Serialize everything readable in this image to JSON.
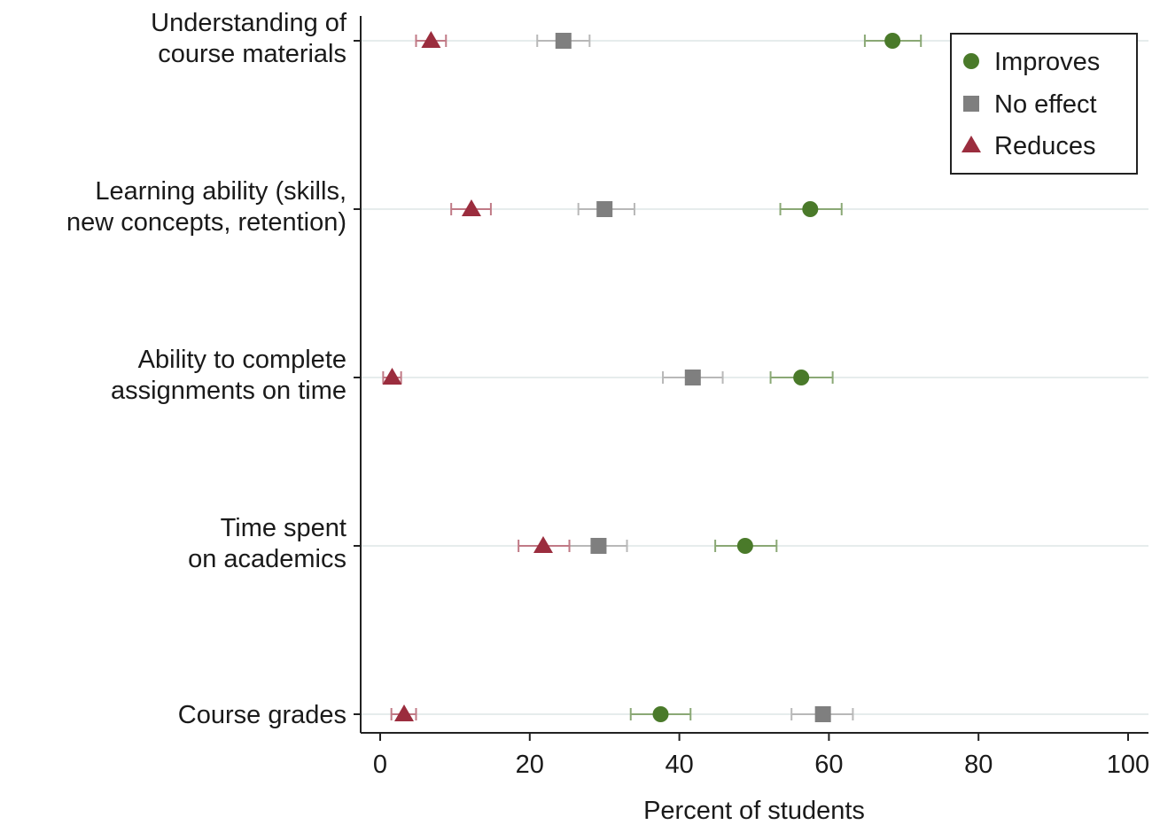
{
  "chart_data": {
    "type": "scatter",
    "orientation": "horizontal",
    "title": "",
    "xlabel": "Percent of students",
    "ylabel": "",
    "xlim": [
      0,
      100
    ],
    "x_ticks": [
      0,
      20,
      40,
      60,
      80,
      100
    ],
    "x_tick_labels": [
      "0",
      "20",
      "40",
      "60",
      "80",
      "100"
    ],
    "grid": "horizontal",
    "legend_position": "top-right",
    "categories": [
      "Understanding of course materials",
      "Learning ability (skills, new concepts, retention)",
      "Ability to complete assignments on time",
      "Time spent on academics",
      "Course grades"
    ],
    "category_label_lines": [
      [
        "Understanding of",
        "course materials"
      ],
      [
        "Learning ability (skills,",
        "new concepts, retention)"
      ],
      [
        "Ability to complete",
        "assignments on time"
      ],
      [
        "Time spent",
        "on academics"
      ],
      [
        "Course grades"
      ]
    ],
    "series": [
      {
        "name": "Improves",
        "marker": "circle",
        "color": "#4a7a2a",
        "whisker_color": "#8aa875",
        "values": [
          68.5,
          57.5,
          56.3,
          48.8,
          37.5
        ],
        "ci_low": [
          64.8,
          53.5,
          52.2,
          44.8,
          33.5
        ],
        "ci_high": [
          72.3,
          61.7,
          60.5,
          53.0,
          41.5
        ]
      },
      {
        "name": "No effect",
        "marker": "square",
        "color": "#7f7f7f",
        "whisker_color": "#b8b8b8",
        "values": [
          24.5,
          30.0,
          41.8,
          29.2,
          59.2
        ],
        "ci_low": [
          21.0,
          26.5,
          37.8,
          25.3,
          55.0
        ],
        "ci_high": [
          28.0,
          34.0,
          45.8,
          33.0,
          63.2
        ]
      },
      {
        "name": "Reduces",
        "marker": "triangle",
        "color": "#9b2d3e",
        "whisker_color": "#c07a86",
        "values": [
          6.8,
          12.2,
          1.6,
          21.8,
          3.2
        ],
        "ci_low": [
          4.8,
          9.5,
          0.4,
          18.5,
          1.5
        ],
        "ci_high": [
          8.8,
          14.8,
          2.8,
          25.3,
          4.8
        ]
      }
    ]
  }
}
